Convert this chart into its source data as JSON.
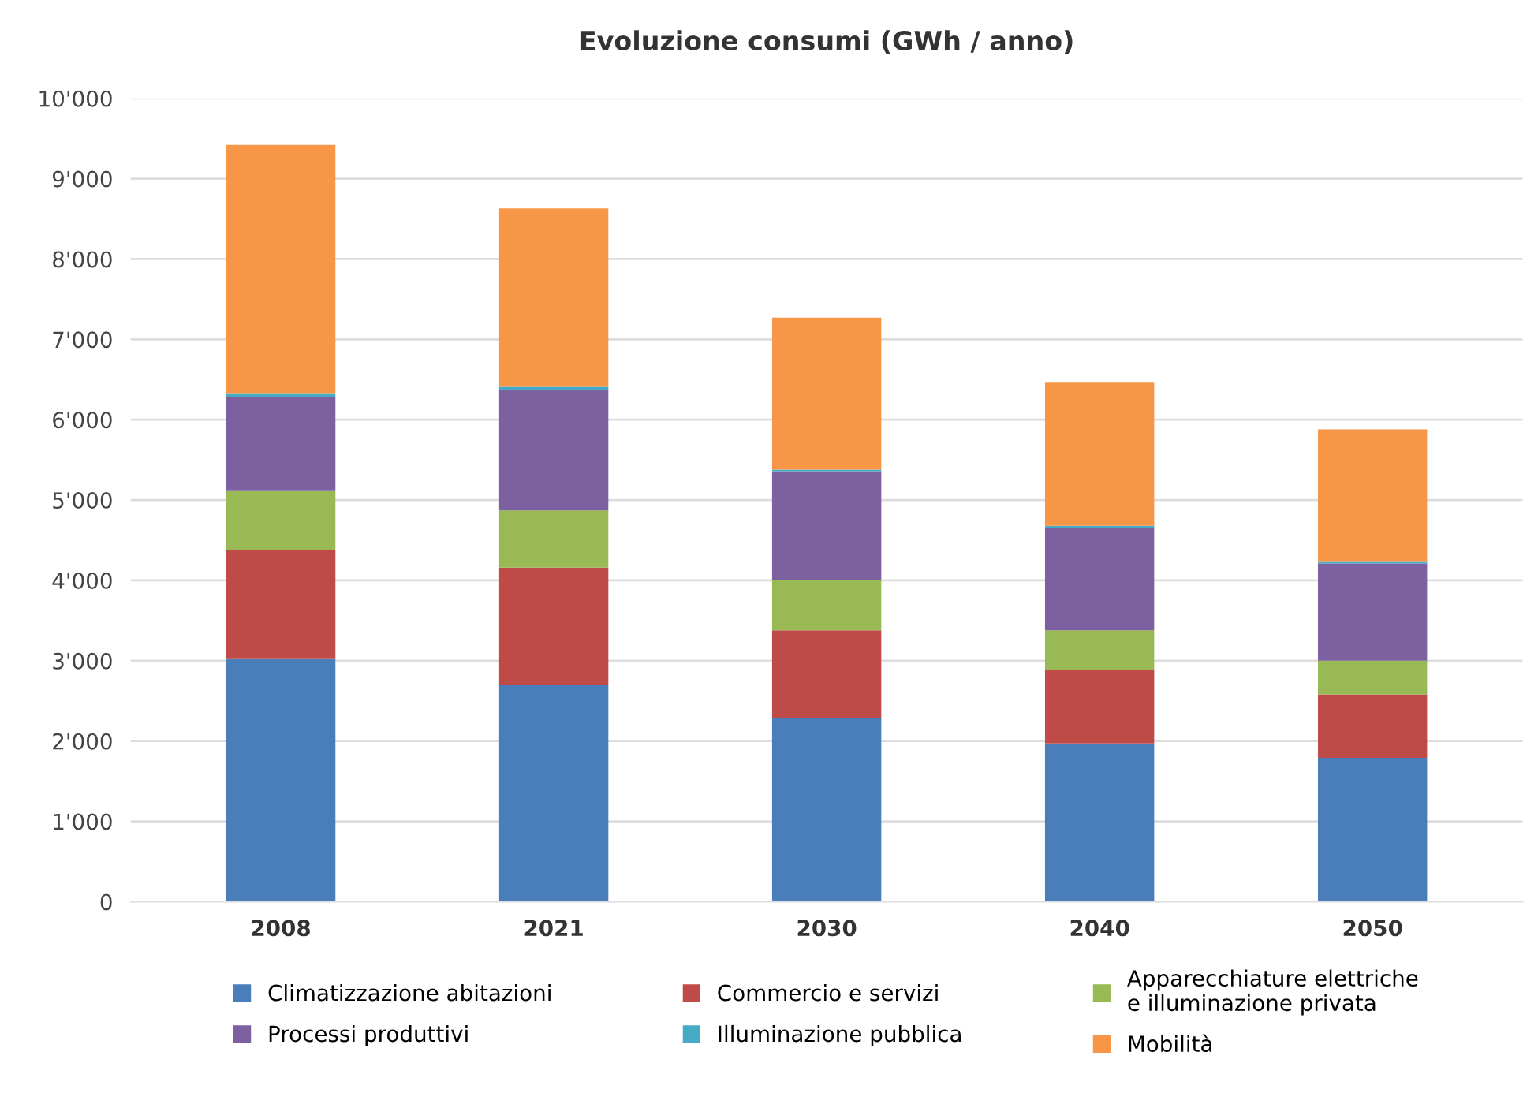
{
  "chart_data": {
    "type": "bar",
    "title": "Evoluzione consumi (GWh / anno)",
    "stacked": true,
    "categories": [
      "2008",
      "2021",
      "2030",
      "2040",
      "2050"
    ],
    "series": [
      {
        "name": "Climatizzazione abitazioni",
        "color": "#4a7ebb",
        "values": [
          3020,
          2700,
          2290,
          1970,
          1790
        ]
      },
      {
        "name": "Commercio e servizi",
        "color": "#be4b48",
        "values": [
          1360,
          1460,
          1090,
          920,
          790
        ]
      },
      {
        "name": "Apparecchiature elettriche\ne illuminazione privata",
        "color": "#98b954",
        "values": [
          740,
          710,
          630,
          490,
          420
        ]
      },
      {
        "name": "Processi produttivi",
        "color": "#7d60a0",
        "values": [
          1160,
          1500,
          1350,
          1270,
          1210
        ]
      },
      {
        "name": "Illuminazione pubblica",
        "color": "#46aac5",
        "values": [
          50,
          40,
          20,
          30,
          20
        ]
      },
      {
        "name": "Mobilità",
        "color": "#f79646",
        "values": [
          3090,
          2220,
          1890,
          1780,
          1650
        ]
      }
    ],
    "ylim": [
      0,
      10000
    ],
    "yticks": [
      0,
      {
        "value": 1000,
        "label": "1'000"
      },
      {
        "value": 2000,
        "label": "2'000"
      },
      {
        "value": 3000,
        "label": "3'000"
      },
      {
        "value": 4000,
        "label": "4'000"
      },
      {
        "value": 5000,
        "label": "5'000"
      },
      {
        "value": 6000,
        "label": "6'000"
      },
      {
        "value": 7000,
        "label": "7'000"
      },
      {
        "value": 8000,
        "label": "8'000"
      },
      {
        "value": 9000,
        "label": "9'000"
      },
      {
        "value": 10000,
        "label": "10'000"
      }
    ],
    "grid": "y",
    "legend": "bottom"
  }
}
